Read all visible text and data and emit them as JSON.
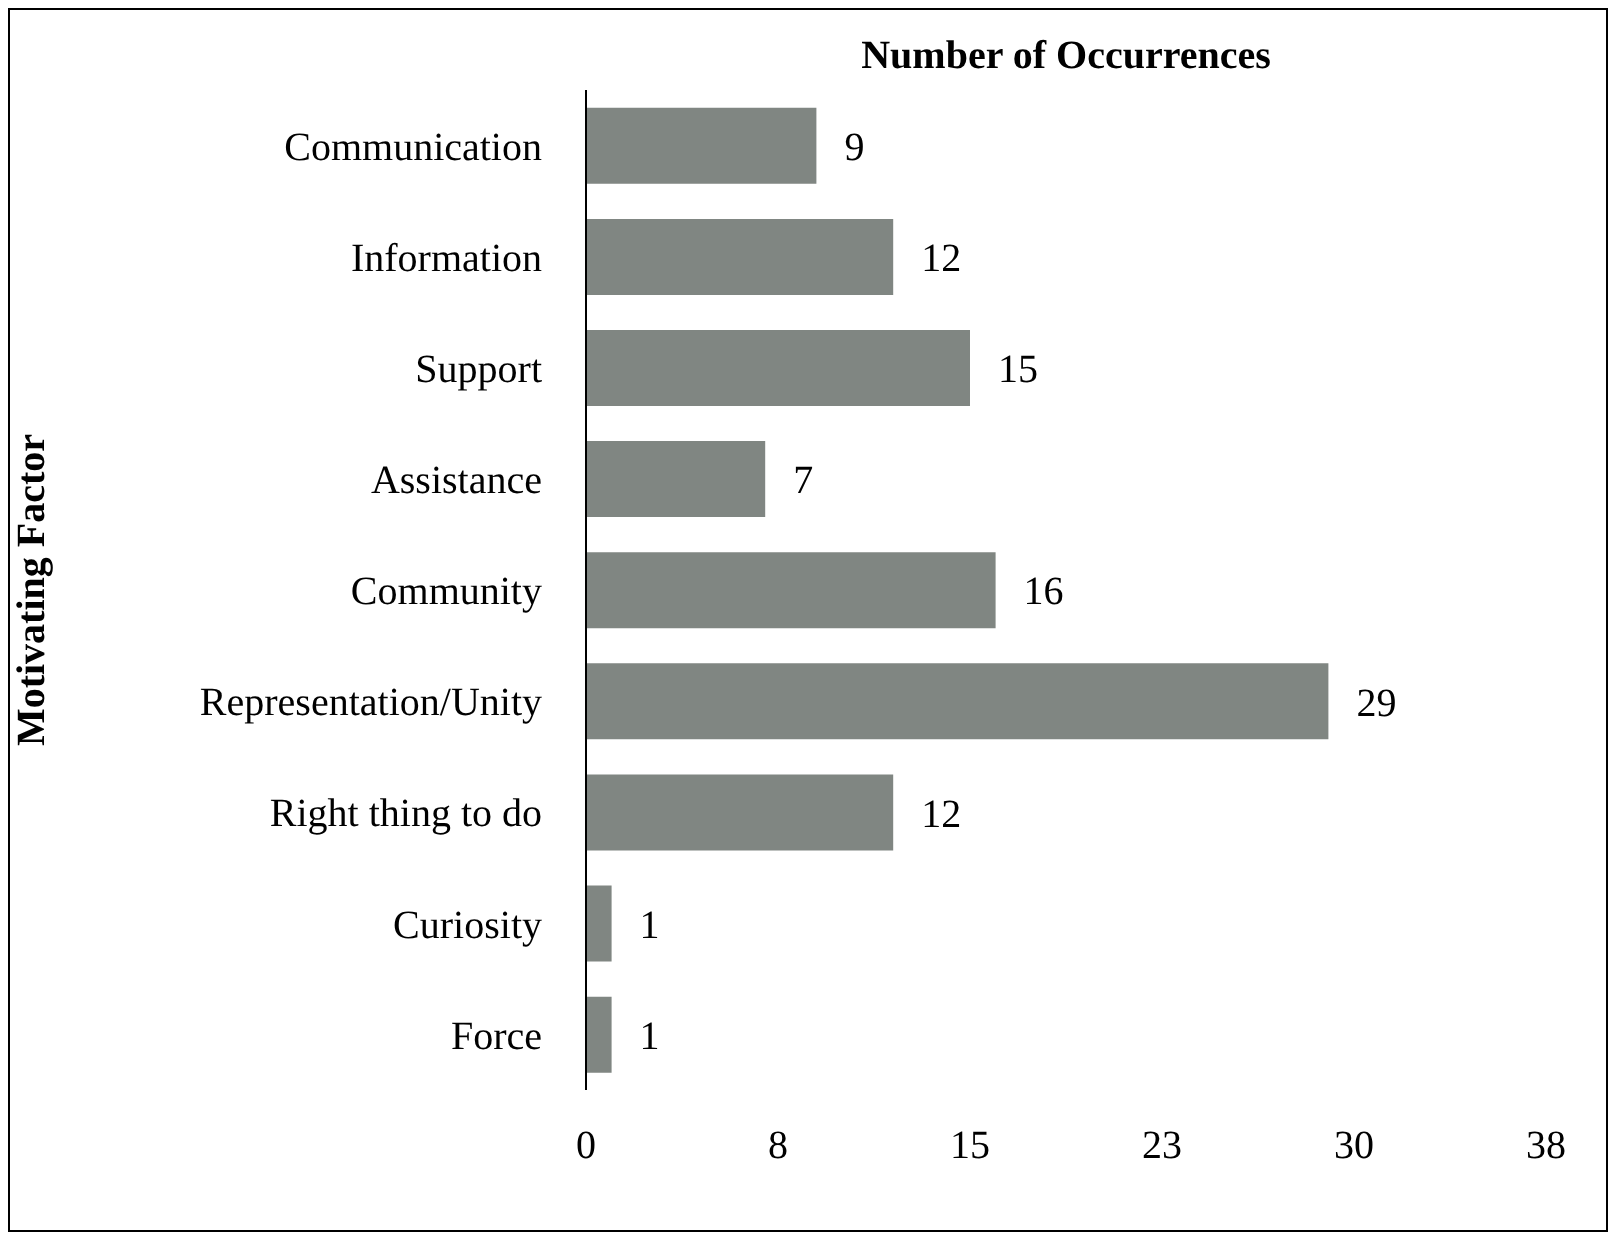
{
  "chart_data": {
    "type": "bar",
    "orientation": "horizontal",
    "title": "Number of Occurrences",
    "ylabel": "Motivating Factor",
    "categories": [
      "Communication",
      "Information",
      "Support",
      "Assistance",
      "Community",
      "Representation/Unity",
      "Right thing to do",
      "Curiosity",
      "Force"
    ],
    "values": [
      9,
      12,
      15,
      7,
      16,
      29,
      12,
      1,
      1
    ],
    "color": "#808682",
    "xlim": [
      0,
      37.5
    ],
    "xticks": [
      0,
      {
        "value": 7.5,
        "label": "8"
      },
      15,
      {
        "value": 22.5,
        "label": "23"
      },
      30,
      {
        "value": 37.5,
        "label": "38"
      }
    ],
    "data_labels": true,
    "grid": false
  }
}
